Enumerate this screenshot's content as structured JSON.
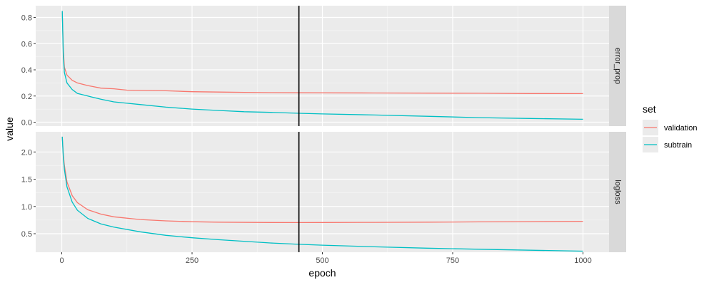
{
  "chart_data": {
    "type": "line",
    "xlabel": "epoch",
    "ylabel": "value",
    "xlim": [
      -50,
      1050
    ],
    "x_ticks": [
      0,
      250,
      500,
      750,
      1000
    ],
    "vline_x": 455,
    "grid": true,
    "legend": {
      "title": "set",
      "position": "right",
      "entries": [
        {
          "name": "validation",
          "color": "#F8766D"
        },
        {
          "name": "subtrain",
          "color": "#00BFC4"
        }
      ]
    },
    "facets": [
      {
        "label": "error_prop",
        "ylim": [
          -0.03,
          0.89
        ],
        "y_ticks": [
          0.0,
          0.2,
          0.4,
          0.6,
          0.8
        ],
        "series": [
          {
            "name": "validation",
            "color": "#F8766D",
            "x": [
              1,
              3,
              5,
              10,
              20,
              30,
              50,
              75,
              100,
              125,
              150,
              200,
              250,
              300,
              350,
              400,
              455,
              500,
              600,
              700,
              800,
              900,
              1000
            ],
            "y": [
              0.84,
              0.55,
              0.42,
              0.36,
              0.32,
              0.3,
              0.28,
              0.26,
              0.255,
              0.245,
              0.243,
              0.24,
              0.233,
              0.23,
              0.228,
              0.226,
              0.225,
              0.224,
              0.223,
              0.222,
              0.221,
              0.219,
              0.218
            ]
          },
          {
            "name": "subtrain",
            "color": "#00BFC4",
            "x": [
              1,
              3,
              5,
              10,
              20,
              30,
              50,
              75,
              100,
              125,
              150,
              200,
              250,
              300,
              350,
              400,
              455,
              500,
              600,
              700,
              800,
              900,
              1000
            ],
            "y": [
              0.85,
              0.5,
              0.38,
              0.3,
              0.25,
              0.22,
              0.2,
              0.175,
              0.155,
              0.145,
              0.135,
              0.115,
              0.1,
              0.09,
              0.08,
              0.075,
              0.068,
              0.063,
              0.055,
              0.045,
              0.035,
              0.028,
              0.022
            ]
          }
        ]
      },
      {
        "label": "logloss",
        "ylim": [
          0.16,
          2.37
        ],
        "y_ticks": [
          0.5,
          1.0,
          1.5,
          2.0
        ],
        "series": [
          {
            "name": "validation",
            "color": "#F8766D",
            "x": [
              1,
              3,
              5,
              10,
              20,
              30,
              50,
              75,
              100,
              150,
              200,
              250,
              300,
              400,
              455,
              500,
              600,
              700,
              800,
              900,
              1000
            ],
            "y": [
              2.28,
              1.95,
              1.75,
              1.45,
              1.2,
              1.07,
              0.94,
              0.86,
              0.81,
              0.76,
              0.735,
              0.72,
              0.712,
              0.705,
              0.704,
              0.705,
              0.708,
              0.712,
              0.717,
              0.722,
              0.728
            ]
          },
          {
            "name": "subtrain",
            "color": "#00BFC4",
            "x": [
              1,
              3,
              5,
              10,
              20,
              30,
              50,
              75,
              100,
              150,
              200,
              250,
              300,
              400,
              455,
              500,
              600,
              700,
              800,
              900,
              1000
            ],
            "y": [
              2.28,
              1.9,
              1.68,
              1.36,
              1.08,
              0.93,
              0.78,
              0.68,
              0.62,
              0.535,
              0.47,
              0.425,
              0.39,
              0.33,
              0.305,
              0.29,
              0.26,
              0.235,
              0.215,
              0.197,
              0.18
            ]
          }
        ]
      }
    ]
  }
}
